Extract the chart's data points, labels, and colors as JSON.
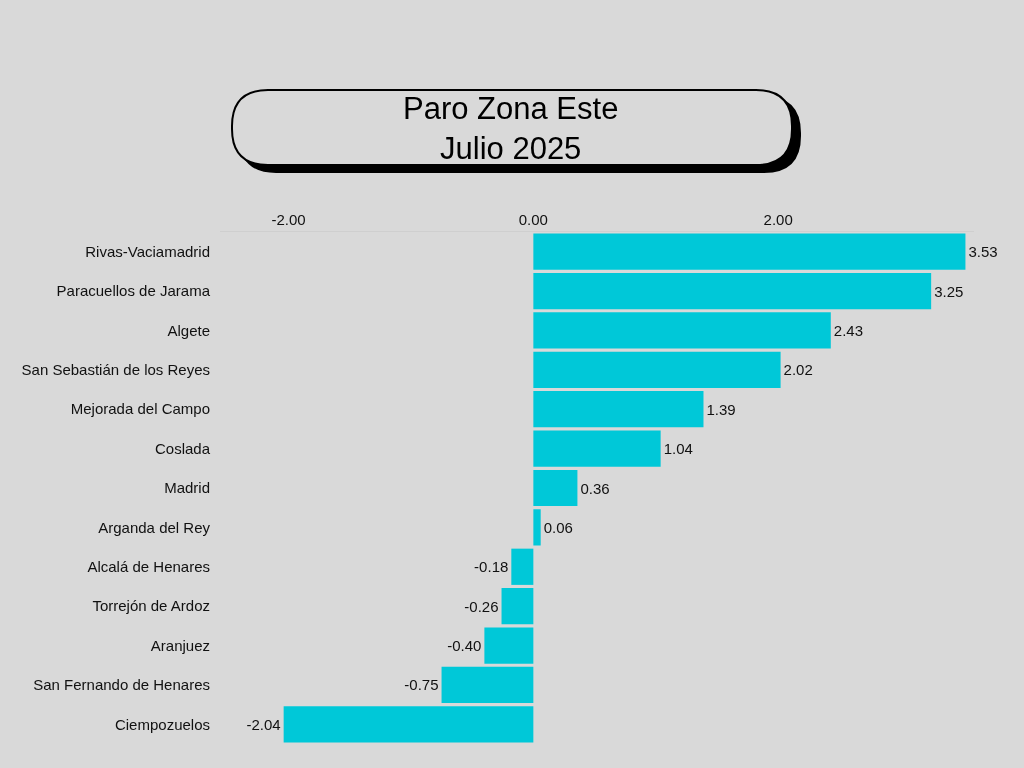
{
  "chart_data": {
    "type": "bar",
    "orientation": "horizontal",
    "title": "Paro Zona Este\nJulio 2025",
    "categories": [
      "Rivas-Vaciamadrid",
      "Paracuellos de Jarama",
      "Algete",
      "San Sebastián de los Reyes",
      "Mejorada del Campo",
      "Coslada",
      "Madrid",
      "Arganda del Rey",
      "Alcalá de Henares",
      "Torrejón de Ardoz",
      "Aranjuez",
      "San Fernando de Henares",
      "Ciempozuelos"
    ],
    "values": [
      3.53,
      3.25,
      2.43,
      2.02,
      1.39,
      1.04,
      0.36,
      0.06,
      -0.18,
      -0.26,
      -0.4,
      -0.75,
      -2.04
    ],
    "value_labels": [
      "3.53",
      "3.25",
      "2.43",
      "2.02",
      "1.39",
      "1.04",
      "0.36",
      "0.06",
      "-0.18",
      "-0.26",
      "-0.40",
      "-0.75",
      "-2.04"
    ],
    "color": "#00c8d8",
    "xlim": [
      -2.56,
      3.6
    ],
    "xticks": [
      {
        "value": -2,
        "label": "-2.00"
      },
      {
        "value": 0,
        "label": "0.00"
      },
      {
        "value": 2,
        "label": "2.00"
      }
    ]
  }
}
